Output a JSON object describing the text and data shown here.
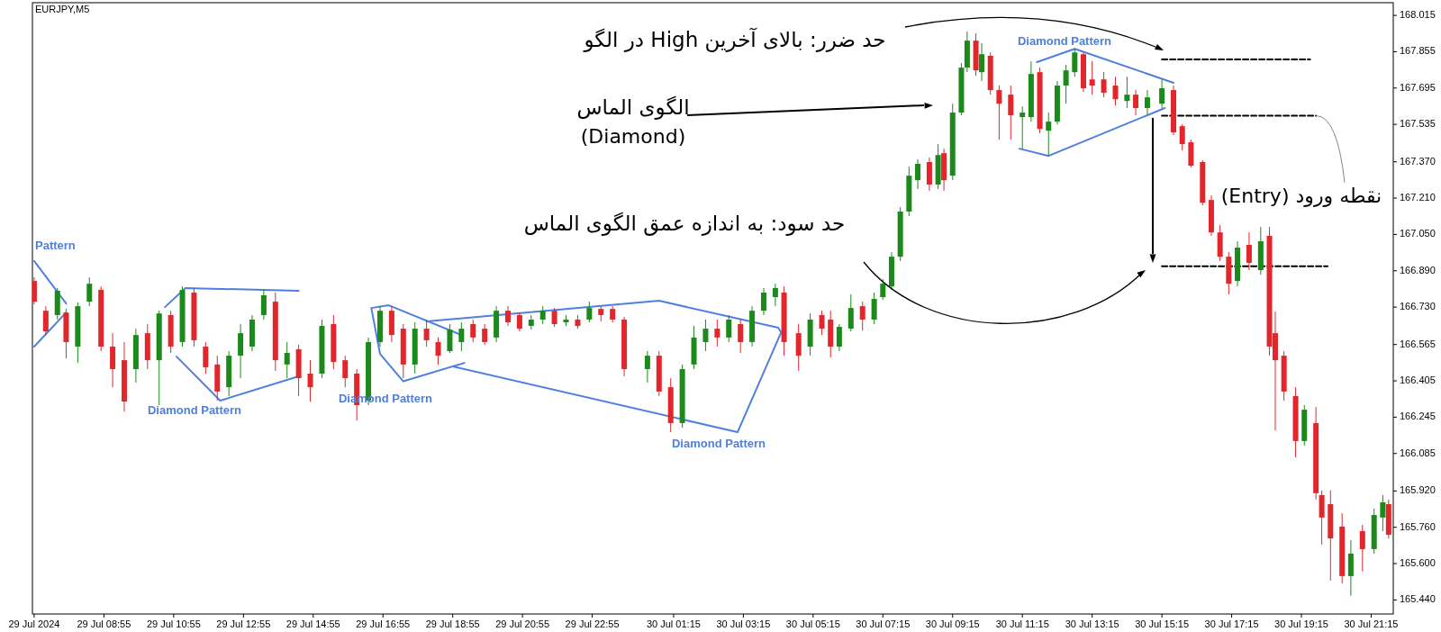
{
  "chart_data": {
    "type": "candlestick",
    "x": [
      "2024-07-29T06:55",
      "2024-07-29T07:15",
      "2024-07-29T07:35",
      "2024-07-29T07:50",
      "2024-07-29T08:10",
      "2024-07-29T08:30",
      "2024-07-29T08:50",
      "2024-07-29T09:10",
      "2024-07-29T09:30",
      "2024-07-29T09:50",
      "2024-07-29T10:10",
      "2024-07-29T10:30",
      "2024-07-29T10:50",
      "2024-07-29T11:10",
      "2024-07-29T11:30",
      "2024-07-29T11:50",
      "2024-07-29T12:10",
      "2024-07-29T12:30",
      "2024-07-29T12:50",
      "2024-07-29T13:10",
      "2024-07-29T13:30",
      "2024-07-29T13:50",
      "2024-07-29T14:10",
      "2024-07-29T14:30",
      "2024-07-29T14:50",
      "2024-07-29T15:10",
      "2024-07-29T15:30",
      "2024-07-29T15:50",
      "2024-07-29T16:10",
      "2024-07-29T16:30",
      "2024-07-29T16:50",
      "2024-07-29T17:10",
      "2024-07-29T17:30",
      "2024-07-29T17:50",
      "2024-07-29T18:10",
      "2024-07-29T18:30",
      "2024-07-29T18:50",
      "2024-07-29T19:10",
      "2024-07-29T19:30",
      "2024-07-29T19:50",
      "2024-07-29T20:10",
      "2024-07-29T20:30",
      "2024-07-29T20:50",
      "2024-07-29T21:10",
      "2024-07-29T21:30",
      "2024-07-29T21:50",
      "2024-07-29T22:10",
      "2024-07-29T22:30",
      "2024-07-29T22:50",
      "2024-07-29T23:10",
      "2024-07-29T23:30",
      "2024-07-29T23:50",
      "2024-07-30T00:30",
      "2024-07-30T00:50",
      "2024-07-30T01:10",
      "2024-07-30T01:30",
      "2024-07-30T01:50",
      "2024-07-30T02:10",
      "2024-07-30T02:30",
      "2024-07-30T02:50",
      "2024-07-30T03:10",
      "2024-07-30T03:30",
      "2024-07-30T03:50",
      "2024-07-30T04:10",
      "2024-07-30T04:25",
      "2024-07-30T04:50",
      "2024-07-30T05:10",
      "2024-07-30T05:30",
      "2024-07-30T05:45",
      "2024-07-30T06:00",
      "2024-07-30T06:20",
      "2024-07-30T06:40",
      "2024-07-30T07:00",
      "2024-07-30T07:15",
      "2024-07-30T07:30",
      "2024-07-30T07:45",
      "2024-07-30T08:00",
      "2024-07-30T08:15",
      "2024-07-30T08:35",
      "2024-07-30T08:50",
      "2024-07-30T09:00",
      "2024-07-30T09:15",
      "2024-07-30T09:30",
      "2024-07-30T09:40",
      "2024-07-30T09:55",
      "2024-07-30T10:05",
      "2024-07-30T10:20",
      "2024-07-30T10:35",
      "2024-07-30T10:55",
      "2024-07-30T11:15",
      "2024-07-30T11:30",
      "2024-07-30T11:45",
      "2024-07-30T12:00",
      "2024-07-30T12:15",
      "2024-07-30T12:30",
      "2024-07-30T12:45",
      "2024-07-30T13:00",
      "2024-07-30T13:15",
      "2024-07-30T13:35",
      "2024-07-30T13:55",
      "2024-07-30T14:15",
      "2024-07-30T14:30",
      "2024-07-30T14:50",
      "2024-07-30T15:15",
      "2024-07-30T15:35",
      "2024-07-30T15:50",
      "2024-07-30T16:05",
      "2024-07-30T16:25",
      "2024-07-30T16:40",
      "2024-07-30T16:55",
      "2024-07-30T17:10",
      "2024-07-30T17:25",
      "2024-07-30T17:45",
      "2024-07-30T18:05",
      "2024-07-30T18:20",
      "2024-07-30T18:30",
      "2024-07-30T18:45",
      "2024-07-30T19:05",
      "2024-07-30T19:20",
      "2024-07-30T19:40",
      "2024-07-30T19:50",
      "2024-07-30T20:05",
      "2024-07-30T20:25",
      "2024-07-30T20:40",
      "2024-07-30T21:00",
      "2024-07-30T21:20",
      "2024-07-30T21:35",
      "2024-07-30T21:45"
    ],
    "ohlc": [
      [
        166.845,
        166.861,
        166.742,
        166.754
      ],
      [
        166.714,
        166.734,
        166.607,
        166.623
      ],
      [
        166.695,
        166.814,
        166.675,
        166.802
      ],
      [
        166.706,
        166.722,
        166.504,
        166.576
      ],
      [
        166.556,
        166.75,
        166.484,
        166.734
      ],
      [
        166.754,
        166.861,
        166.734,
        166.833
      ],
      [
        166.806,
        166.821,
        166.536,
        166.556
      ],
      [
        166.556,
        166.615,
        166.377,
        166.457
      ],
      [
        166.496,
        166.576,
        166.27,
        166.314
      ],
      [
        166.457,
        166.635,
        166.397,
        166.607
      ],
      [
        166.615,
        166.655,
        166.457,
        166.496
      ],
      [
        166.496,
        166.714,
        166.298,
        166.702
      ],
      [
        166.695,
        166.714,
        166.528,
        166.556
      ],
      [
        166.576,
        166.821,
        166.556,
        166.806
      ],
      [
        166.794,
        166.814,
        166.556,
        166.584
      ],
      [
        166.556,
        166.576,
        166.437,
        166.465
      ],
      [
        166.477,
        166.516,
        166.318,
        166.358
      ],
      [
        166.377,
        166.536,
        166.338,
        166.516
      ],
      [
        166.516,
        166.655,
        166.417,
        166.615
      ],
      [
        166.556,
        166.695,
        166.536,
        166.675
      ],
      [
        166.695,
        166.806,
        166.675,
        166.782
      ],
      [
        166.754,
        166.794,
        166.449,
        166.496
      ],
      [
        166.477,
        166.576,
        166.417,
        166.528
      ],
      [
        166.544,
        166.564,
        166.338,
        166.417
      ],
      [
        166.437,
        166.496,
        166.314,
        166.377
      ],
      [
        166.437,
        166.675,
        166.417,
        166.647
      ],
      [
        166.655,
        166.695,
        166.457,
        166.488
      ],
      [
        166.496,
        166.516,
        166.377,
        166.417
      ],
      [
        166.437,
        166.457,
        166.231,
        166.298
      ],
      [
        166.318,
        166.596,
        166.298,
        166.576
      ],
      [
        166.576,
        166.734,
        166.556,
        166.714
      ],
      [
        166.714,
        166.734,
        166.576,
        166.607
      ],
      [
        166.635,
        166.655,
        166.417,
        166.477
      ],
      [
        166.477,
        166.663,
        166.437,
        166.635
      ],
      [
        166.635,
        166.675,
        166.556,
        166.584
      ],
      [
        166.576,
        166.596,
        166.477,
        166.516
      ],
      [
        166.536,
        166.655,
        166.528,
        166.631
      ],
      [
        166.576,
        166.663,
        166.536,
        166.635
      ],
      [
        166.655,
        166.675,
        166.576,
        166.596
      ],
      [
        166.635,
        166.655,
        166.564,
        166.576
      ],
      [
        166.596,
        166.734,
        166.576,
        166.714
      ],
      [
        166.714,
        166.734,
        166.647,
        166.663
      ],
      [
        166.695,
        166.706,
        166.623,
        166.635
      ],
      [
        166.647,
        166.695,
        166.631,
        166.675
      ],
      [
        166.675,
        166.734,
        166.655,
        166.714
      ],
      [
        166.714,
        166.726,
        166.643,
        166.655
      ],
      [
        166.663,
        166.695,
        166.647,
        166.675
      ],
      [
        166.675,
        166.695,
        166.635,
        166.647
      ],
      [
        166.675,
        166.754,
        166.663,
        166.726
      ],
      [
        166.722,
        166.734,
        166.667,
        166.695
      ],
      [
        166.722,
        166.734,
        166.663,
        166.675
      ],
      [
        166.675,
        166.687,
        166.425,
        166.457
      ],
      [
        166.457,
        166.536,
        166.397,
        166.516
      ],
      [
        166.516,
        166.536,
        166.338,
        166.358
      ],
      [
        166.377,
        166.417,
        166.179,
        166.219
      ],
      [
        166.219,
        166.477,
        166.199,
        166.457
      ],
      [
        166.477,
        166.647,
        166.457,
        166.596
      ],
      [
        166.576,
        166.675,
        166.536,
        166.635
      ],
      [
        166.635,
        166.675,
        166.556,
        166.596
      ],
      [
        166.596,
        166.695,
        166.576,
        166.675
      ],
      [
        166.655,
        166.675,
        166.528,
        166.576
      ],
      [
        166.576,
        166.734,
        166.556,
        166.714
      ],
      [
        166.714,
        166.814,
        166.695,
        166.794
      ],
      [
        166.774,
        166.833,
        166.734,
        166.814
      ],
      [
        166.794,
        166.821,
        166.516,
        166.576
      ],
      [
        166.615,
        166.655,
        166.449,
        166.516
      ],
      [
        166.556,
        166.702,
        166.516,
        166.675
      ],
      [
        166.695,
        166.714,
        166.607,
        166.635
      ],
      [
        166.675,
        166.714,
        166.508,
        166.556
      ],
      [
        166.556,
        166.655,
        166.536,
        166.643
      ],
      [
        166.635,
        166.786,
        166.623,
        166.726
      ],
      [
        166.734,
        166.754,
        166.627,
        166.675
      ],
      [
        166.675,
        166.794,
        166.655,
        166.766
      ],
      [
        166.774,
        166.853,
        166.762,
        166.833
      ],
      [
        166.821,
        166.972,
        166.806,
        166.952
      ],
      [
        166.952,
        167.17,
        166.933,
        167.151
      ],
      [
        167.151,
        167.349,
        167.131,
        167.309
      ],
      [
        167.289,
        167.381,
        167.25,
        167.361
      ],
      [
        167.369,
        167.389,
        167.242,
        167.27
      ],
      [
        167.27,
        167.448,
        167.25,
        167.4
      ],
      [
        167.408,
        167.428,
        167.242,
        167.289
      ],
      [
        167.309,
        167.626,
        167.289,
        167.587
      ],
      [
        167.587,
        167.805,
        167.575,
        167.785
      ],
      [
        167.785,
        167.944,
        167.765,
        167.904
      ],
      [
        167.904,
        167.936,
        167.749,
        167.773
      ],
      [
        167.765,
        167.892,
        167.726,
        167.844
      ],
      [
        167.837,
        167.852,
        167.666,
        167.686
      ],
      [
        167.686,
        167.706,
        167.468,
        167.626
      ],
      [
        167.666,
        167.706,
        167.468,
        167.575
      ],
      [
        167.567,
        167.614,
        167.428,
        167.587
      ],
      [
        167.567,
        167.813,
        167.547,
        167.757
      ],
      [
        167.765,
        167.785,
        167.496,
        167.515
      ],
      [
        167.507,
        167.587,
        167.396,
        167.547
      ],
      [
        167.547,
        167.726,
        167.535,
        167.706
      ],
      [
        167.706,
        167.797,
        167.626,
        167.773
      ],
      [
        167.765,
        167.868,
        167.745,
        167.852
      ],
      [
        167.844,
        167.852,
        167.678,
        167.694
      ],
      [
        167.733,
        167.813,
        167.666,
        167.706
      ],
      [
        167.733,
        167.765,
        167.654,
        167.674
      ],
      [
        167.706,
        167.745,
        167.618,
        167.646
      ],
      [
        167.638,
        167.745,
        167.607,
        167.666
      ],
      [
        167.666,
        167.686,
        167.575,
        167.607
      ],
      [
        167.607,
        167.686,
        167.579,
        167.654
      ],
      [
        167.626,
        167.733,
        167.607,
        167.694
      ],
      [
        167.686,
        167.706,
        167.488,
        167.5
      ],
      [
        167.527,
        167.535,
        167.42,
        167.448
      ],
      [
        167.456,
        167.468,
        167.345,
        167.353
      ],
      [
        167.369,
        167.377,
        167.178,
        167.19
      ],
      [
        167.202,
        167.222,
        167.044,
        167.059
      ],
      [
        167.059,
        167.091,
        166.933,
        166.952
      ],
      [
        166.952,
        166.972,
        166.786,
        166.833
      ],
      [
        166.845,
        167.02,
        166.821,
        166.992
      ],
      [
        167.004,
        167.059,
        166.893,
        166.925
      ],
      [
        166.893,
        167.083,
        166.873,
        167.02
      ],
      [
        167.044,
        167.083,
        166.516,
        166.556
      ],
      [
        166.615,
        166.71,
        166.187,
        166.496
      ],
      [
        166.516,
        166.536,
        166.318,
        166.358
      ],
      [
        166.338,
        166.377,
        166.068,
        166.14
      ],
      [
        166.14,
        166.298,
        166.12,
        166.278
      ],
      [
        166.219,
        166.29,
        165.882,
        165.91
      ],
      [
        165.902,
        165.922,
        165.684,
        165.803
      ],
      [
        165.862,
        165.922,
        165.525,
        165.711
      ],
      [
        165.763,
        165.822,
        165.513,
        165.545
      ],
      [
        165.545,
        165.703,
        165.458,
        165.644
      ],
      [
        165.743,
        165.771,
        165.565,
        165.664
      ],
      [
        165.664,
        165.842,
        165.644,
        165.814
      ],
      [
        165.803,
        165.902,
        165.743,
        165.87
      ],
      [
        165.862,
        165.882,
        165.711,
        165.727
      ]
    ],
    "series": [
      {
        "type": "line",
        "color": "#4f7fdf",
        "x": [
          "2024-07-29T06:55",
          "2024-07-29T07:50"
        ],
        "values": [
          166.933,
          166.746
        ]
      },
      {
        "type": "line",
        "color": "#4f7fdf",
        "x": [
          "2024-07-29T07:50",
          "2024-07-29T06:55"
        ],
        "values": [
          166.706,
          166.556
        ]
      },
      {
        "type": "line",
        "color": "#4f7fdf",
        "x": [
          "2024-07-29T10:40",
          "2024-07-29T11:15",
          "2024-07-29T14:30"
        ],
        "values": [
          166.73,
          166.814,
          166.802
        ]
      },
      {
        "type": "line",
        "color": "#4f7fdf",
        "x": [
          "2024-07-29T11:00",
          "2024-07-29T12:15",
          "2024-07-29T14:30"
        ],
        "values": [
          166.512,
          166.318,
          166.425
        ]
      },
      {
        "type": "line",
        "color": "#4f7fdf",
        "x": [
          "2024-07-29T19:10",
          "2024-07-29T17:05",
          "2024-07-29T16:35",
          "2024-07-29T16:50",
          "2024-07-29T17:30",
          "2024-07-29T19:15"
        ],
        "values": [
          166.607,
          166.738,
          166.726,
          166.524,
          166.403,
          166.484
        ]
      },
      {
        "type": "line",
        "color": "#4f7fdf",
        "x": [
          "2024-07-29T18:10",
          "2024-07-30T00:50",
          "2024-07-30T04:15",
          "2024-07-30T04:20",
          "2024-07-30T03:05",
          "2024-07-29T18:55"
        ],
        "values": [
          166.667,
          166.758,
          166.639,
          166.619,
          166.179,
          166.469
        ]
      },
      {
        "type": "line",
        "color": "#4f7fdf",
        "x": [
          "2024-07-30T15:35",
          "2024-07-30T12:45",
          "2024-07-30T11:40"
        ],
        "values": [
          167.718,
          167.868,
          167.809
        ]
      },
      {
        "type": "line",
        "color": "#4f7fdf",
        "x": [
          "2024-07-30T11:10",
          "2024-07-30T12:00",
          "2024-07-30T15:20"
        ],
        "values": [
          167.428,
          167.396,
          167.607
        ]
      },
      {
        "type": "line",
        "color": "#000000",
        "line_style": "dashed",
        "x": [
          "2024-07-30T15:15",
          "2024-07-30T19:30"
        ],
        "values": [
          167.821,
          167.821
        ]
      },
      {
        "type": "line",
        "color": "#000000",
        "line_style": "dashed",
        "x": [
          "2024-07-30T15:15",
          "2024-07-30T19:40"
        ],
        "values": [
          167.573,
          167.573
        ]
      },
      {
        "type": "line",
        "color": "#000000",
        "line_style": "dashed",
        "x": [
          "2024-07-30T15:15",
          "2024-07-30T20:00"
        ],
        "values": [
          166.91,
          166.91
        ]
      }
    ],
    "xlim": [
      "2024-07-29T06:52",
      "2024-07-30T21:53"
    ],
    "xticks": [
      {
        "value": "2024-07-29T06:55",
        "label": "29 Jul 2024"
      },
      {
        "value": "2024-07-29T08:55",
        "label": "29 Jul 08:55"
      },
      {
        "value": "2024-07-29T10:55",
        "label": "29 Jul 10:55"
      },
      {
        "value": "2024-07-29T12:55",
        "label": "29 Jul 12:55"
      },
      {
        "value": "2024-07-29T14:55",
        "label": "29 Jul 14:55"
      },
      {
        "value": "2024-07-29T16:55",
        "label": "29 Jul 16:55"
      },
      {
        "value": "2024-07-29T18:55",
        "label": "29 Jul 18:55"
      },
      {
        "value": "2024-07-29T20:55",
        "label": "29 Jul 20:55"
      },
      {
        "value": "2024-07-29T22:55",
        "label": "29 Jul 22:55"
      },
      {
        "value": "2024-07-30T01:15",
        "label": "30 Jul 01:15"
      },
      {
        "value": "2024-07-30T03:15",
        "label": "30 Jul 03:15"
      },
      {
        "value": "2024-07-30T05:15",
        "label": "30 Jul 05:15"
      },
      {
        "value": "2024-07-30T07:15",
        "label": "30 Jul 07:15"
      },
      {
        "value": "2024-07-30T09:15",
        "label": "30 Jul 09:15"
      },
      {
        "value": "2024-07-30T11:15",
        "label": "30 Jul 11:15"
      },
      {
        "value": "2024-07-30T13:15",
        "label": "30 Jul 13:15"
      },
      {
        "value": "2024-07-30T15:15",
        "label": "30 Jul 15:15"
      },
      {
        "value": "2024-07-30T17:15",
        "label": "30 Jul 17:15"
      },
      {
        "value": "2024-07-30T19:15",
        "label": "30 Jul 19:15"
      },
      {
        "value": "2024-07-30T21:15",
        "label": "30 Jul 21:15"
      }
    ],
    "ylim": [
      165.378,
      168.071
    ],
    "yticks": [
      168.015,
      167.855,
      167.695,
      167.535,
      {
        "value": 167.37,
        "label": "167.370"
      },
      {
        "value": 167.21,
        "label": "167.210"
      },
      {
        "value": 167.05,
        "label": "167.050"
      },
      {
        "value": 166.89,
        "label": "166.890"
      },
      {
        "value": 166.73,
        "label": "166.730"
      },
      166.565,
      166.405,
      166.245,
      166.085,
      {
        "value": 165.92,
        "label": "165.920"
      },
      {
        "value": 165.76,
        "label": "165.760"
      },
      {
        "value": 165.6,
        "label": "165.600"
      },
      {
        "value": 165.44,
        "label": "165.440"
      }
    ],
    "grid": false,
    "marker": "none",
    "annotations": [
      "EURJPY,M5",
      "حد ضرر: بالای آخرین High در الگو",
      "الگوی الماس",
      "(Diamond)",
      "حد سود: به اندازه عمق الگوی الماس",
      {
        "text": "نقطه ورود (Entry)",
        "x": "2024-07-30T19:40",
        "y": 167.573
      },
      "Pattern",
      "Diamond Pattern",
      "Diamond Pattern",
      "Diamond Pattern",
      "Diamond Pattern"
    ]
  }
}
